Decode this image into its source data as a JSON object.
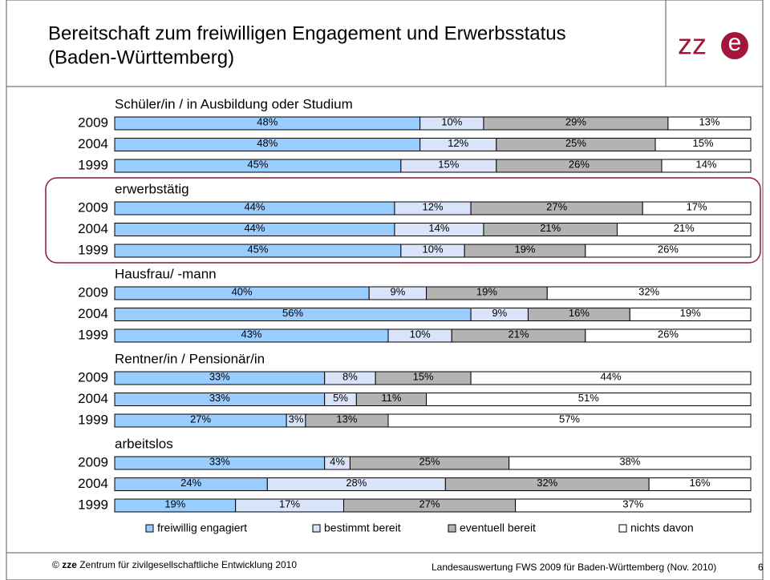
{
  "header": {
    "title_lines": [
      "Bereitschaft zum freiwilligen Engagement und Erwerbsstatus",
      "(Baden-Württemberg)"
    ],
    "logo": {
      "letters": "zz",
      "circle": "e"
    }
  },
  "chart_data": {
    "type": "bar",
    "orientation": "horizontal",
    "stacked": true,
    "xlim": [
      0,
      100
    ],
    "highlight": 1,
    "series": [
      {
        "name": "freiwillig engagiert",
        "color": "#99ccff"
      },
      {
        "name": "bestimmt bereit",
        "color": "#d9e4fb"
      },
      {
        "name": "eventuell bereit",
        "color": "#b3b3b3"
      },
      {
        "name": "nichts davon",
        "color": "#ffffff"
      }
    ],
    "groups": [
      {
        "title": "Schüler/in / in Ausbildung oder Studium",
        "categories": [
          "2009",
          "2004",
          "1999"
        ],
        "values": [
          [
            48,
            10,
            29,
            13
          ],
          [
            48,
            12,
            25,
            15
          ],
          [
            45,
            15,
            26,
            14
          ]
        ],
        "value_labels": [
          [
            "48%",
            "10%",
            "29%",
            "13%"
          ],
          [
            "48%",
            "12%",
            "25%",
            "15%"
          ],
          [
            "45%",
            "15%",
            "26%",
            "14%"
          ]
        ]
      },
      {
        "title": "erwerbstätig",
        "categories": [
          "2009",
          "2004",
          "1999"
        ],
        "values": [
          [
            44,
            12,
            27,
            17
          ],
          [
            44,
            14,
            21,
            21
          ],
          [
            45,
            10,
            19,
            26
          ]
        ],
        "value_labels": [
          [
            "44%",
            "12%",
            "27%",
            "17%"
          ],
          [
            "44%",
            "14%",
            "21%",
            "21%"
          ],
          [
            "45%",
            "10%",
            "19%",
            "26%"
          ]
        ]
      },
      {
        "title": "Hausfrau/ -mann",
        "categories": [
          "2009",
          "2004",
          "1999"
        ],
        "values": [
          [
            40,
            9,
            19,
            32
          ],
          [
            56,
            9,
            16,
            19
          ],
          [
            43,
            10,
            21,
            26
          ]
        ],
        "value_labels": [
          [
            "40%",
            "9%",
            "19%",
            "32%"
          ],
          [
            "56%",
            "9%",
            "16%",
            "19%"
          ],
          [
            "43%",
            "10%",
            "21%",
            "26%"
          ]
        ]
      },
      {
        "title": "Rentner/in / Pensionär/in",
        "categories": [
          "2009",
          "2004",
          "1999"
        ],
        "values": [
          [
            33,
            8,
            15,
            44
          ],
          [
            33,
            5,
            11,
            51
          ],
          [
            27,
            3,
            13,
            57
          ]
        ],
        "value_labels": [
          [
            "33%",
            "8%",
            "15%",
            "44%"
          ],
          [
            "33%",
            "5%",
            "11%",
            "51%"
          ],
          [
            "27%",
            "3%",
            "13%",
            "57%"
          ]
        ]
      },
      {
        "title": "arbeitslos",
        "categories": [
          "2009",
          "2004",
          "1999"
        ],
        "values": [
          [
            33,
            4,
            25,
            38
          ],
          [
            24,
            28,
            32,
            16
          ],
          [
            19,
            17,
            27,
            37
          ]
        ],
        "value_labels": [
          [
            "33%",
            "4%",
            "25%",
            "38%"
          ],
          [
            "24%",
            "28%",
            "32%",
            "16%"
          ],
          [
            "19%",
            "17%",
            "27%",
            "37%"
          ]
        ]
      }
    ]
  },
  "footer": {
    "copyright": "©",
    "org_short": "zze",
    "org": "Zentrum für zivilgesellschaftliche Entwicklung 2010",
    "source": "Landesauswertung FWS 2009 für Baden-Württemberg (Nov. 2010)",
    "page": "6"
  }
}
